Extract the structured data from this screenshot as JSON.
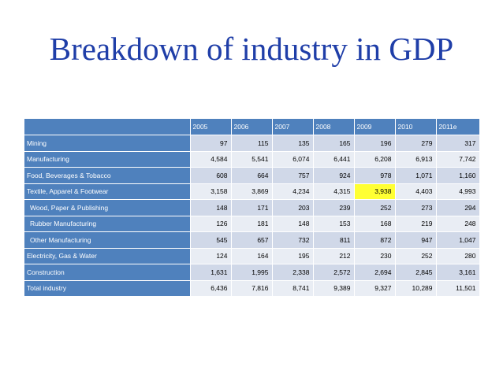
{
  "slide": {
    "title": "Breakdown of industry in GDP"
  },
  "table": {
    "corner": "",
    "columns": [
      "2005",
      "2006",
      "2007",
      "2008",
      "2009",
      "2010",
      "2011e"
    ],
    "rows": [
      {
        "label": "Mining",
        "indent": false,
        "values": [
          "97",
          "115",
          "135",
          "165",
          "196",
          "279",
          "317"
        ]
      },
      {
        "label": "Manufacturing",
        "indent": false,
        "values": [
          "4,584",
          "5,541",
          "6,074",
          "6,441",
          "6,208",
          "6,913",
          "7,742"
        ]
      },
      {
        "label": "Food, Beverages & Tobacco",
        "indent": false,
        "values": [
          "608",
          "664",
          "757",
          "924",
          "978",
          "1,071",
          "1,160"
        ]
      },
      {
        "label": "Textile, Apparel & Footwear",
        "indent": false,
        "values": [
          "3,158",
          "3,869",
          "4,234",
          "4,315",
          "3,938",
          "4,403",
          "4,993"
        ]
      },
      {
        "label": "Wood, Paper & Publishing",
        "indent": true,
        "values": [
          "148",
          "171",
          "203",
          "239",
          "252",
          "273",
          "294"
        ]
      },
      {
        "label": "Rubber Manufacturing",
        "indent": true,
        "values": [
          "126",
          "181",
          "148",
          "153",
          "168",
          "219",
          "248"
        ]
      },
      {
        "label": "Other Manufacturing",
        "indent": true,
        "values": [
          "545",
          "657",
          "732",
          "811",
          "872",
          "947",
          "1,047"
        ]
      },
      {
        "label": "Electricity, Gas & Water",
        "indent": false,
        "values": [
          "124",
          "164",
          "195",
          "212",
          "230",
          "252",
          "280"
        ]
      },
      {
        "label": "Construction",
        "indent": false,
        "values": [
          "1,631",
          "1,995",
          "2,338",
          "2,572",
          "2,694",
          "2,845",
          "3,161"
        ]
      },
      {
        "label": "Total industry",
        "indent": false,
        "values": [
          "6,436",
          "7,816",
          "8,741",
          "9,389",
          "9,327",
          "10,289",
          "11,501"
        ]
      }
    ],
    "highlight": {
      "row": 3,
      "col": 4
    }
  },
  "colors": {
    "title": "#1f3ea8",
    "header": "#4f81bd",
    "row_odd": "#d0d8e8",
    "row_even": "#e9edf4",
    "highlight": "#ffff33"
  }
}
